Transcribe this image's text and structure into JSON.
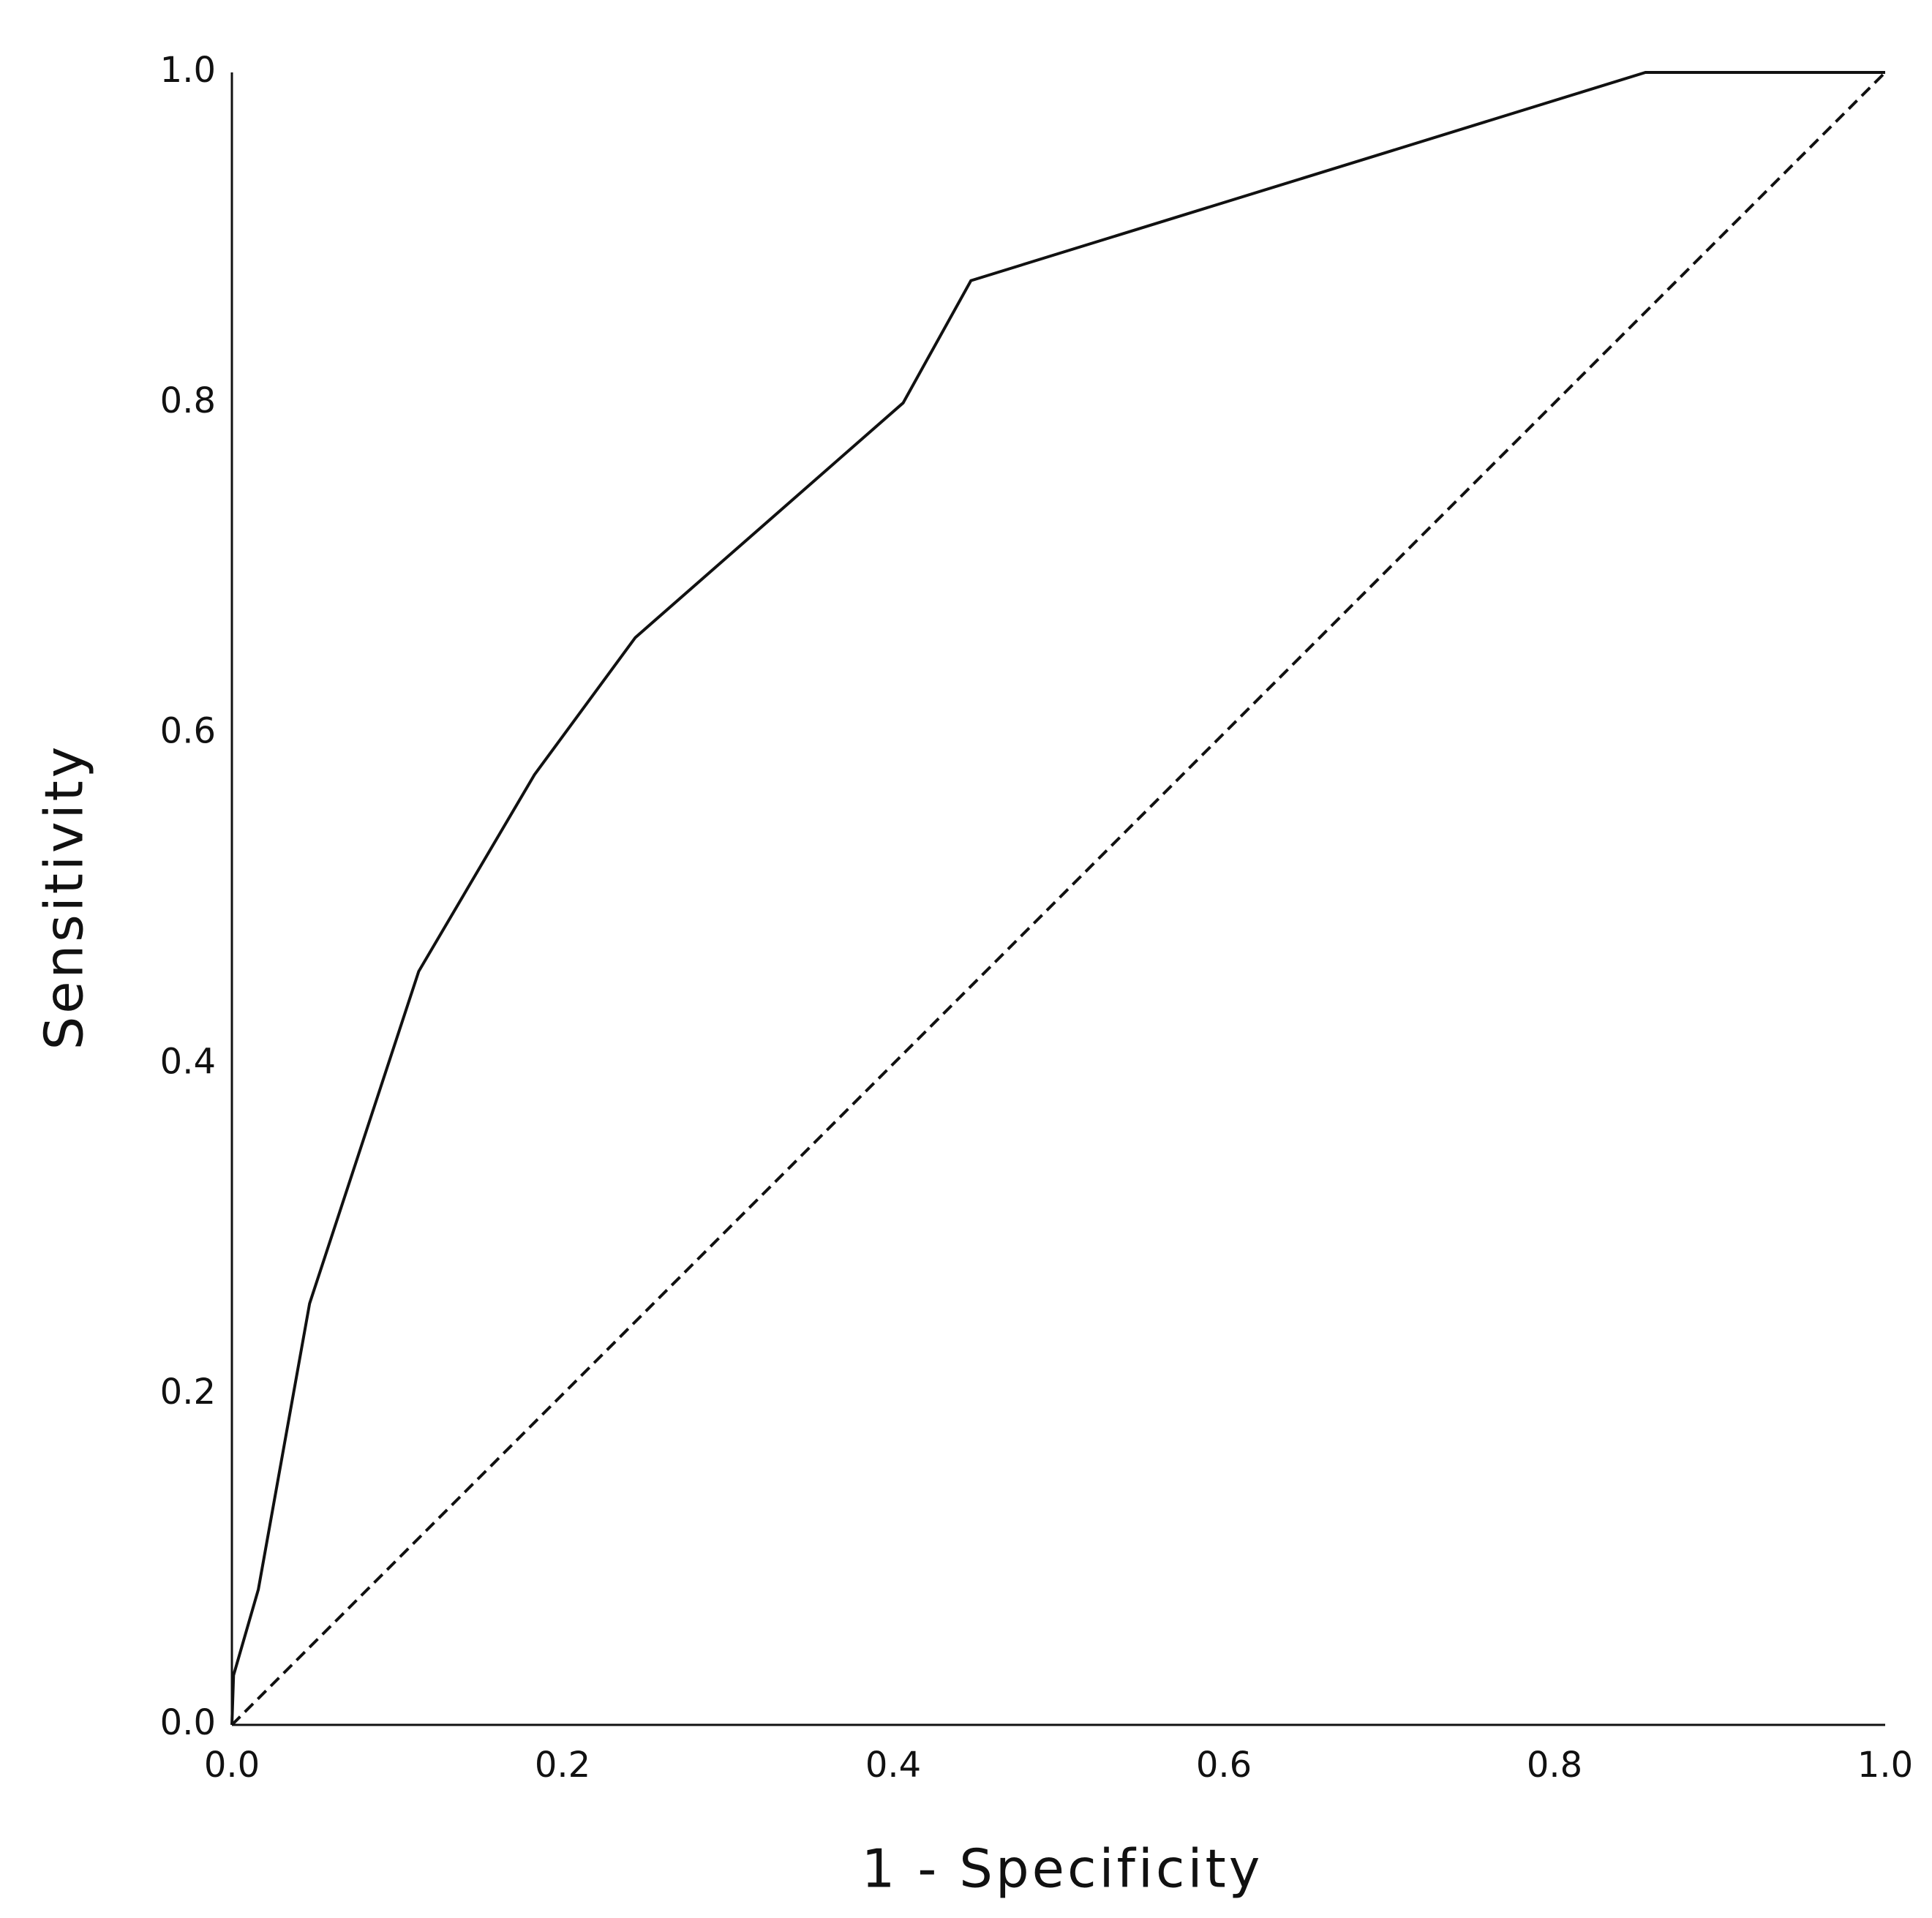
{
  "chart_data": {
    "type": "line",
    "xlabel": "1 - Specificity",
    "ylabel": "Sensitivity",
    "xlim": [
      0,
      1
    ],
    "ylim": [
      0,
      1
    ],
    "xticks": [
      {
        "value": 0,
        "label": "0.0"
      },
      0.2,
      0.4,
      0.6,
      0.8,
      {
        "value": 1,
        "label": "1.0"
      }
    ],
    "yticks": [
      {
        "value": 0,
        "label": "0.0"
      },
      0.2,
      0.4,
      0.6,
      0.8,
      {
        "value": 1,
        "label": "1.0"
      }
    ],
    "grid": false,
    "series": [
      {
        "color": "#111111",
        "dashed": false,
        "x": [
          0,
          0.001,
          0.016,
          0.047,
          0.113,
          0.183,
          0.244,
          0.406,
          0.447,
          0.855,
          1
        ],
        "values": [
          0,
          0.03,
          0.082,
          0.255,
          0.456,
          0.575,
          0.658,
          0.8,
          0.874,
          1,
          1
        ]
      },
      {
        "color": "#111111",
        "dashed": true,
        "x": [
          0,
          1
        ],
        "values": [
          0,
          1
        ]
      }
    ]
  }
}
